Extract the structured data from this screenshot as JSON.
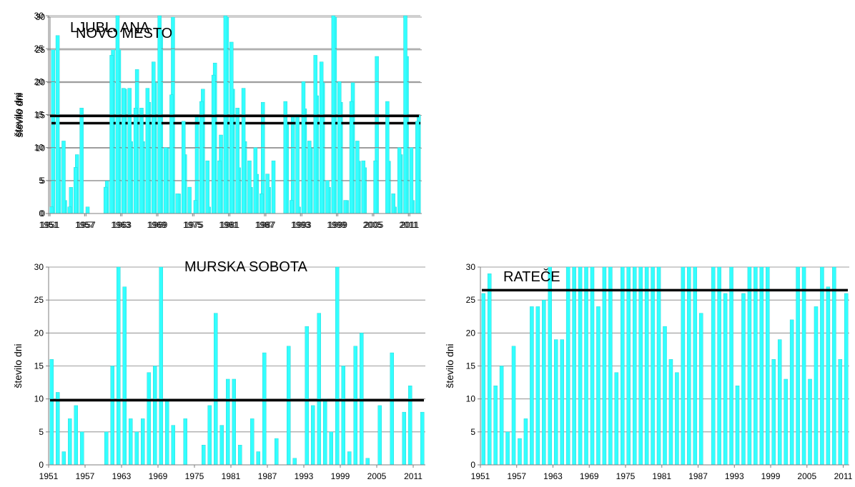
{
  "chart_data": [
    {
      "type": "bar",
      "title": "LJUBLJANA",
      "ylabel": "število dni",
      "ylim": [
        0,
        30
      ],
      "yticks": [
        "0",
        "5",
        "10",
        "15",
        "20",
        "25",
        "30"
      ],
      "x_start": 1951,
      "xticks": [
        "1951",
        "1957",
        "1963",
        "1969",
        "1975",
        "1981",
        "1987",
        "1993",
        "1999",
        "2005",
        "2011"
      ],
      "reference_line": 13.8,
      "series": [
        {
          "values": [
            25,
            10,
            2,
            4,
            9,
            0,
            0,
            0,
            0,
            5,
            25,
            25,
            19,
            11,
            22,
            11,
            17,
            20,
            28,
            10,
            31,
            3,
            9,
            0,
            15,
            19,
            1,
            23,
            12,
            31,
            19,
            7,
            11,
            4,
            6,
            17,
            4,
            0,
            0,
            14,
            15,
            1,
            16,
            10,
            18,
            20,
            4,
            30,
            17,
            2,
            20,
            8,
            7,
            0,
            24,
            0,
            8,
            1,
            9,
            24,
            2,
            15
          ]
        }
      ]
    },
    {
      "type": "bar",
      "title": "NOVO MESTO",
      "ylabel": "število dni",
      "ylim": [
        0,
        30
      ],
      "yticks": [
        "0",
        "5",
        "10",
        "15",
        "20",
        "25",
        "30"
      ],
      "x_start": 1951,
      "xticks": [
        "1951",
        "1957",
        "1963",
        "1969",
        "1975",
        "1981",
        "1987",
        "1993",
        "1999",
        "2005",
        "2011"
      ],
      "reference_line": 14.8,
      "series": [
        {
          "values": [
            1,
            27,
            11,
            1,
            7,
            16,
            1,
            0,
            0,
            4,
            24,
            31,
            19,
            19,
            16,
            16,
            19,
            23,
            31,
            10,
            18,
            3,
            14,
            4,
            2,
            17,
            8,
            21,
            8,
            31,
            26,
            16,
            19,
            8,
            10,
            3,
            6,
            8,
            0,
            17,
            2,
            15,
            20,
            11,
            24,
            23,
            5,
            30,
            20,
            2,
            17,
            11,
            8,
            0,
            8,
            0,
            17,
            3,
            10,
            30,
            10,
            14
          ]
        }
      ]
    },
    {
      "type": "bar",
      "title": "MURSKA SOBOTA",
      "ylabel": "število dni",
      "ylim": [
        0,
        30
      ],
      "yticks": [
        "0",
        "5",
        "10",
        "15",
        "20",
        "25",
        "30"
      ],
      "x_start": 1951,
      "xticks": [
        "1951",
        "1957",
        "1963",
        "1969",
        "1975",
        "1981",
        "1987",
        "1993",
        "1999",
        "2005",
        "2011"
      ],
      "reference_line": 9.8,
      "series": [
        {
          "values": [
            16,
            11,
            2,
            7,
            9,
            5,
            0,
            0,
            0,
            5,
            15,
            31,
            27,
            7,
            5,
            7,
            14,
            15,
            31,
            10,
            6,
            0,
            7,
            0,
            0,
            3,
            9,
            23,
            6,
            13,
            13,
            3,
            0,
            7,
            2,
            17,
            0,
            4,
            0,
            18,
            1,
            0,
            21,
            9,
            23,
            10,
            5,
            30,
            15,
            2,
            18,
            20,
            1,
            0,
            9,
            0,
            17,
            0,
            8,
            12,
            0,
            8
          ]
        }
      ]
    },
    {
      "type": "bar",
      "title": "RATEČE",
      "ylabel": "število dni",
      "ylim": [
        0,
        30
      ],
      "yticks": [
        "0",
        "5",
        "10",
        "15",
        "20",
        "25",
        "30"
      ],
      "x_start": 1951,
      "xticks": [
        "1951",
        "1957",
        "1963",
        "1969",
        "1975",
        "1981",
        "1987",
        "1993",
        "1999",
        "2005",
        "2011"
      ],
      "reference_line": 26.5,
      "series": [
        {
          "values": [
            26,
            29,
            12,
            15,
            5,
            18,
            4,
            7,
            24,
            24,
            25,
            31,
            19,
            19,
            31,
            31,
            31,
            31,
            31,
            24,
            31,
            31,
            14,
            30,
            31,
            30,
            31,
            31,
            31,
            31,
            21,
            16,
            14,
            31,
            31,
            31,
            23,
            0,
            31,
            31,
            26,
            31,
            12,
            26,
            31,
            31,
            31,
            31,
            16,
            19,
            13,
            22,
            31,
            31,
            13,
            24,
            30,
            27,
            31,
            16,
            26
          ]
        }
      ]
    }
  ],
  "colors": {
    "bar": "#33ffff",
    "bar_edge": "#22cccc",
    "reference_line": "#000000",
    "gridline": "#7f7f7f",
    "axis": "#7f7f7f"
  }
}
